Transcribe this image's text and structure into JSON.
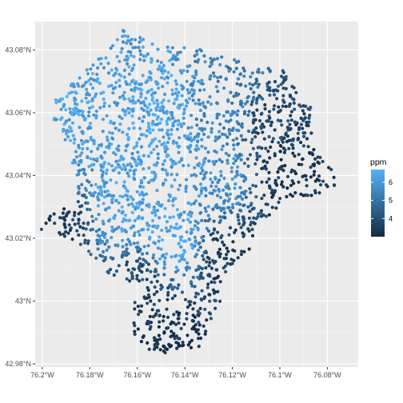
{
  "chart_data": {
    "type": "scatter",
    "subtype": "map-points",
    "title": "",
    "xlabel": "",
    "ylabel": "",
    "xlim": [
      -76.203,
      -76.067
    ],
    "ylim": [
      42.979,
      43.089
    ],
    "x_ticks": [
      {
        "value": -76.2,
        "label": "76.2°W"
      },
      {
        "value": -76.18,
        "label": "76.18°W"
      },
      {
        "value": -76.16,
        "label": "76.16°W"
      },
      {
        "value": -76.14,
        "label": "76.14°W"
      },
      {
        "value": -76.12,
        "label": "76.12°W"
      },
      {
        "value": -76.1,
        "label": "76.1°W"
      },
      {
        "value": -76.08,
        "label": "76.08°W"
      }
    ],
    "y_ticks": [
      {
        "value": 42.98,
        "label": "42.98°N"
      },
      {
        "value": 43.0,
        "label": "43°N"
      },
      {
        "value": 43.02,
        "label": "43.02°N"
      },
      {
        "value": 43.04,
        "label": "43.04°N"
      },
      {
        "value": 43.06,
        "label": "43.06°N"
      },
      {
        "value": 43.08,
        "label": "43.08°N"
      }
    ],
    "grid": true,
    "legend": {
      "title": "ppm",
      "placement": "right",
      "type": "colorbar",
      "range": [
        3.0,
        6.7
      ],
      "breaks": [
        4,
        5,
        6
      ],
      "colors": {
        "low": "#132b43",
        "high": "#56b1f7"
      }
    },
    "region_outline": [
      [
        -76.166,
        43.0866
      ],
      [
        -76.155,
        43.0825
      ],
      [
        -76.14,
        43.0815
      ],
      [
        -76.125,
        43.079
      ],
      [
        -76.112,
        43.0745
      ],
      [
        -76.101,
        43.0745
      ],
      [
        -76.096,
        43.072
      ],
      [
        -76.093,
        43.0665
      ],
      [
        -76.086,
        43.0615
      ],
      [
        -76.087,
        43.056
      ],
      [
        -76.085,
        43.0475
      ],
      [
        -76.077,
        43.041
      ],
      [
        -76.076,
        43.0365
      ],
      [
        -76.086,
        43.0335
      ],
      [
        -76.1,
        43.032
      ],
      [
        -76.103,
        43.027
      ],
      [
        -76.11,
        43.0255
      ],
      [
        -76.113,
        43.015
      ],
      [
        -76.117,
        43.014
      ],
      [
        -76.123,
        43.009
      ],
      [
        -76.126,
        43.004
      ],
      [
        -76.124,
        42.998
      ],
      [
        -76.128,
        42.995
      ],
      [
        -76.13,
        42.9915
      ],
      [
        -76.131,
        42.987
      ],
      [
        -76.136,
        42.984
      ],
      [
        -76.141,
        42.985
      ],
      [
        -76.148,
        42.9835
      ],
      [
        -76.158,
        42.9842
      ],
      [
        -76.162,
        42.987
      ],
      [
        -76.162,
        42.9975
      ],
      [
        -76.159,
        43.004
      ],
      [
        -76.172,
        43.008
      ],
      [
        -76.18,
        43.015
      ],
      [
        -76.184,
        43.018
      ],
      [
        -76.19,
        43.02
      ],
      [
        -76.201,
        43.023
      ],
      [
        -76.196,
        43.029
      ],
      [
        -76.188,
        43.03
      ],
      [
        -76.185,
        43.035
      ],
      [
        -76.187,
        43.042
      ],
      [
        -76.189,
        43.048
      ],
      [
        -76.194,
        43.0555
      ],
      [
        -76.197,
        43.0605
      ],
      [
        -76.194,
        43.065
      ],
      [
        -76.188,
        43.069
      ],
      [
        -76.18,
        43.075
      ],
      [
        -76.173,
        43.08
      ]
    ],
    "hotspots": [
      {
        "lon": -76.19,
        "lat": 43.06,
        "ppm": 6.3
      },
      {
        "lon": -76.168,
        "lat": 43.052,
        "ppm": 6.2
      },
      {
        "lon": -76.15,
        "lat": 43.062,
        "ppm": 6.4
      },
      {
        "lon": -76.165,
        "lat": 43.03,
        "ppm": 6.3
      },
      {
        "lon": -76.147,
        "lat": 43.02,
        "ppm": 6.5
      },
      {
        "lon": -76.14,
        "lat": 43.045,
        "ppm": 6.1
      },
      {
        "lon": -76.125,
        "lat": 43.04,
        "ppm": 5.8
      },
      {
        "lon": -76.128,
        "lat": 43.06,
        "ppm": 5.6
      },
      {
        "lon": -76.118,
        "lat": 43.07,
        "ppm": 5.2
      },
      {
        "lon": -76.098,
        "lat": 43.04,
        "ppm": 3.4
      },
      {
        "lon": -76.09,
        "lat": 43.035,
        "ppm": 3.3
      },
      {
        "lon": -76.12,
        "lat": 43.014,
        "ppm": 3.5
      },
      {
        "lon": -76.148,
        "lat": 42.988,
        "ppm": 3.1
      },
      {
        "lon": -76.158,
        "lat": 43.005,
        "ppm": 3.8
      },
      {
        "lon": -76.195,
        "lat": 43.022,
        "ppm": 3.5
      },
      {
        "lon": -76.103,
        "lat": 43.058,
        "ppm": 3.8
      }
    ],
    "point_count": 2200
  }
}
